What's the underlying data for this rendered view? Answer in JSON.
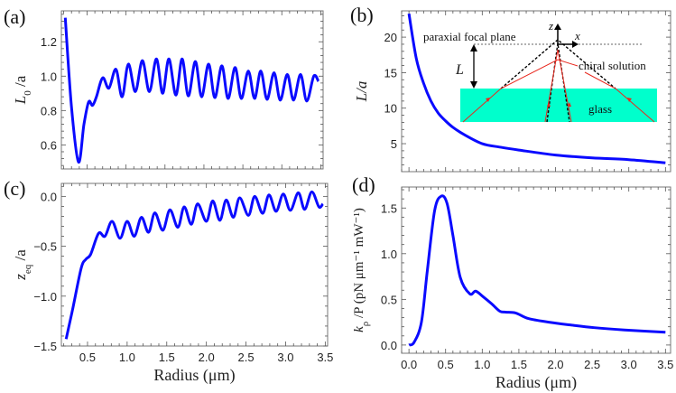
{
  "colors": {
    "curve": "#0a0aff",
    "glass": "#00ffcc",
    "ray": "#e8281e"
  },
  "chart_data": [
    {
      "id": "a",
      "panel_label": "(a)",
      "type": "line",
      "ylabel": {
        "main": "L",
        "sub": "0",
        "rest": " /a"
      },
      "xlabel": "",
      "xlim": [
        0.17,
        3.53
      ],
      "ylim": [
        0.46,
        1.38
      ],
      "xticks": [],
      "yticks": [
        0.6,
        0.8,
        1.0,
        1.2
      ],
      "ytick_labels": [
        "0.6",
        "0.8",
        "1.0",
        "1.2"
      ],
      "points": [
        [
          0.22,
          1.34
        ],
        [
          0.3,
          0.82
        ],
        [
          0.39,
          0.5
        ],
        [
          0.46,
          0.72
        ],
        [
          0.52,
          0.85
        ],
        [
          0.57,
          0.83
        ],
        [
          0.62,
          0.88
        ],
        [
          0.7,
          0.99
        ],
        [
          0.78,
          0.93
        ],
        [
          0.87,
          1.04
        ],
        [
          0.95,
          0.88
        ],
        [
          1.03,
          1.07
        ],
        [
          1.12,
          0.91
        ],
        [
          1.21,
          1.09
        ],
        [
          1.3,
          0.91
        ],
        [
          1.39,
          1.1
        ],
        [
          1.47,
          0.9
        ],
        [
          1.55,
          1.1
        ],
        [
          1.64,
          0.89
        ],
        [
          1.72,
          1.1
        ],
        [
          1.8,
          0.885
        ],
        [
          1.89,
          1.085
        ],
        [
          1.97,
          0.88
        ],
        [
          2.06,
          1.07
        ],
        [
          2.14,
          0.875
        ],
        [
          2.23,
          1.06
        ],
        [
          2.31,
          0.87
        ],
        [
          2.4,
          1.05
        ],
        [
          2.48,
          0.87
        ],
        [
          2.57,
          1.03
        ],
        [
          2.65,
          0.87
        ],
        [
          2.73,
          1.03
        ],
        [
          2.81,
          0.865
        ],
        [
          2.9,
          1.02
        ],
        [
          2.98,
          0.86
        ],
        [
          3.07,
          1.01
        ],
        [
          3.15,
          0.86
        ],
        [
          3.24,
          1.01
        ],
        [
          3.32,
          0.855
        ],
        [
          3.41,
          1.0
        ],
        [
          3.47,
          0.97
        ]
      ]
    },
    {
      "id": "b",
      "panel_label": "(b)",
      "type": "line",
      "ylabel": {
        "main": "L/a",
        "sub": "",
        "rest": ""
      },
      "xlabel": "",
      "xlim": [
        -0.1,
        3.57
      ],
      "ylim": [
        1.06,
        23.7
      ],
      "xticks": [],
      "yticks": [
        5,
        10,
        15,
        20
      ],
      "ytick_labels": [
        "5",
        "10",
        "15",
        "20"
      ],
      "points": [
        [
          0.0,
          23.3
        ],
        [
          0.1,
          17.0
        ],
        [
          0.2,
          13.5
        ],
        [
          0.3,
          11.0
        ],
        [
          0.4,
          9.3
        ],
        [
          0.5,
          8.2
        ],
        [
          0.6,
          7.3
        ],
        [
          0.75,
          6.3
        ],
        [
          1.0,
          5.0
        ],
        [
          1.25,
          4.5
        ],
        [
          1.5,
          4.1
        ],
        [
          2.0,
          3.4
        ],
        [
          2.5,
          3.0
        ],
        [
          3.0,
          2.75
        ],
        [
          3.5,
          2.3
        ]
      ]
    },
    {
      "id": "c",
      "panel_label": "(c)",
      "type": "line",
      "ylabel": {
        "main": "z",
        "sub": "eq",
        "rest": " /a"
      },
      "xlabel": "Radius (μm)",
      "xlim": [
        0.17,
        3.53
      ],
      "ylim": [
        -1.5,
        0.13
      ],
      "xticks": [
        0.5,
        1.0,
        1.5,
        2.0,
        2.5,
        3.0,
        3.5
      ],
      "xtick_labels": [
        "0.5",
        "1.0",
        "1.5",
        "2.0",
        "2.5",
        "3.0",
        "3.5"
      ],
      "yticks": [
        -1.5,
        -1.0,
        -0.5,
        0.0
      ],
      "ytick_labels": [
        "-1.5",
        "-1.0",
        "-0.5",
        "0.0"
      ],
      "points": [
        [
          0.23,
          -1.43
        ],
        [
          0.31,
          -1.14
        ],
        [
          0.42,
          -0.72
        ],
        [
          0.48,
          -0.63
        ],
        [
          0.54,
          -0.58
        ],
        [
          0.64,
          -0.37
        ],
        [
          0.72,
          -0.4
        ],
        [
          0.81,
          -0.25
        ],
        [
          0.91,
          -0.42
        ],
        [
          1.0,
          -0.25
        ],
        [
          1.09,
          -0.4
        ],
        [
          1.18,
          -0.21
        ],
        [
          1.27,
          -0.36
        ],
        [
          1.35,
          -0.165
        ],
        [
          1.45,
          -0.34
        ],
        [
          1.54,
          -0.135
        ],
        [
          1.64,
          -0.31
        ],
        [
          1.72,
          -0.105
        ],
        [
          1.81,
          -0.28
        ],
        [
          1.89,
          -0.075
        ],
        [
          2.0,
          -0.25
        ],
        [
          2.08,
          -0.045
        ],
        [
          2.17,
          -0.24
        ],
        [
          2.25,
          -0.036
        ],
        [
          2.34,
          -0.21
        ],
        [
          2.42,
          -0.015
        ],
        [
          2.53,
          -0.19
        ],
        [
          2.61,
          0.0
        ],
        [
          2.71,
          -0.17
        ],
        [
          2.79,
          0.015
        ],
        [
          2.88,
          -0.15
        ],
        [
          2.97,
          0.024
        ],
        [
          3.06,
          -0.14
        ],
        [
          3.16,
          0.036
        ],
        [
          3.24,
          -0.13
        ],
        [
          3.33,
          0.045
        ],
        [
          3.42,
          -0.105
        ],
        [
          3.47,
          -0.075
        ]
      ]
    },
    {
      "id": "d",
      "panel_label": "(d)",
      "type": "line",
      "ylabel": {
        "main": "k",
        "sub": "ρ",
        "rest": " /P (pN μm⁻¹ mW⁻¹)"
      },
      "xlabel": "Radius (μm)",
      "xlim": [
        -0.1,
        3.57
      ],
      "ylim": [
        -0.09,
        1.73
      ],
      "xticks": [
        0,
        0.5,
        1.0,
        1.5,
        2.0,
        2.5,
        3.0,
        3.5
      ],
      "xtick_labels": [
        "0.0",
        "0.5",
        "1.0",
        "1.5",
        "2.0",
        "2.5",
        "3.0",
        "3.5"
      ],
      "yticks": [
        0,
        0.5,
        1.0,
        1.5
      ],
      "ytick_labels": [
        "0.0",
        "0.5",
        "1.0",
        "1.5"
      ],
      "points": [
        [
          0.0,
          0.0
        ],
        [
          0.07,
          0.03
        ],
        [
          0.17,
          0.25
        ],
        [
          0.25,
          0.81
        ],
        [
          0.35,
          1.47
        ],
        [
          0.44,
          1.63
        ],
        [
          0.52,
          1.55
        ],
        [
          0.6,
          1.2
        ],
        [
          0.7,
          0.74
        ],
        [
          0.83,
          0.56
        ],
        [
          0.91,
          0.59
        ],
        [
          1.01,
          0.53
        ],
        [
          1.13,
          0.45
        ],
        [
          1.24,
          0.37
        ],
        [
          1.32,
          0.36
        ],
        [
          1.46,
          0.35
        ],
        [
          1.63,
          0.29
        ],
        [
          1.91,
          0.25
        ],
        [
          2.2,
          0.22
        ],
        [
          2.53,
          0.19
        ],
        [
          2.94,
          0.165
        ],
        [
          3.5,
          0.14
        ]
      ]
    }
  ],
  "inset": {
    "focal_plane": "paraxial focal plane",
    "z_axis": "z",
    "x_axis": "x",
    "distance": "L",
    "chiral": "chiral solution",
    "glass": "glass"
  }
}
